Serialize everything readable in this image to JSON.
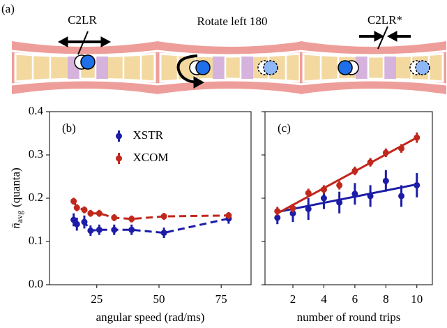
{
  "panel_a": {
    "label": "(a)",
    "steps": [
      "C2LR",
      "Rotate left 180",
      "C2LR*"
    ]
  },
  "chart_data": [
    {
      "type": "errorbar",
      "panel_label": "(b)",
      "x_label": "angular speed (rad/ms)",
      "y_label": {
        "symbol": "n̄",
        "subscript": "avg",
        "unit": "(quanta)"
      },
      "xlim": [
        6,
        87
      ],
      "ylim": [
        0,
        0.4
      ],
      "xticks": [
        25,
        50,
        75
      ],
      "yticks": [
        {
          "value": 0,
          "label": "0.0"
        },
        0.1,
        0.2,
        0.3,
        0.4
      ],
      "show_ytick_labels": true,
      "legend": "upper center",
      "linestyle": "dashed",
      "series": [
        {
          "name": "XSTR",
          "color": "#1c1ca8",
          "x": [
            15.7,
            17,
            20,
            22.5,
            26,
            32,
            39,
            52,
            78
          ],
          "values": [
            0.15,
            0.14,
            0.145,
            0.125,
            0.127,
            0.127,
            0.127,
            0.12,
            0.153
          ],
          "errors": [
            0.015,
            0.015,
            0.015,
            0.012,
            0.012,
            0.012,
            0.012,
            0.012,
            0.012
          ]
        },
        {
          "name": "XCOM",
          "color": "#c0281c",
          "x": [
            15.7,
            17,
            20,
            22.5,
            26,
            32,
            39,
            52,
            78
          ],
          "values": [
            0.193,
            0.178,
            0.173,
            0.165,
            0.165,
            0.155,
            0.152,
            0.158,
            0.16
          ],
          "errors": [
            0.008,
            0.008,
            0.008,
            0.008,
            0.008,
            0.008,
            0.008,
            0.008,
            0.008
          ]
        }
      ]
    },
    {
      "type": "errorbar",
      "panel_label": "(c)",
      "x_label": "number of round trips",
      "xlim": [
        0.2,
        11
      ],
      "ylim": [
        0,
        0.4
      ],
      "xticks": [
        2,
        4,
        6,
        8,
        10
      ],
      "yticks": [
        0,
        0.1,
        0.2,
        0.3,
        0.4
      ],
      "show_ytick_labels": false,
      "linestyle": "none",
      "series": [
        {
          "name": "XSTR",
          "color": "#1c1ca8",
          "x": [
            1,
            2,
            3,
            4,
            5,
            6,
            7,
            8,
            9,
            10
          ],
          "values": [
            0.155,
            0.165,
            0.175,
            0.2,
            0.19,
            0.21,
            0.205,
            0.24,
            0.205,
            0.23
          ],
          "errors": [
            0.015,
            0.02,
            0.025,
            0.025,
            0.025,
            0.025,
            0.025,
            0.025,
            0.025,
            0.028
          ],
          "fit": {
            "x": [
              1,
              10
            ],
            "values": [
              0.168,
              0.232
            ]
          }
        },
        {
          "name": "XCOM",
          "color": "#c0281c",
          "x": [
            1,
            2,
            3,
            4,
            5,
            6,
            7,
            8,
            9,
            10
          ],
          "values": [
            0.17,
            0.177,
            0.212,
            0.22,
            0.23,
            0.263,
            0.283,
            0.305,
            0.315,
            0.34
          ],
          "errors": [
            0.01,
            0.01,
            0.01,
            0.01,
            0.01,
            0.01,
            0.01,
            0.01,
            0.01,
            0.012
          ],
          "fit": {
            "x": [
              1,
              10
            ],
            "values": [
              0.165,
              0.34
            ]
          }
        }
      ]
    }
  ]
}
